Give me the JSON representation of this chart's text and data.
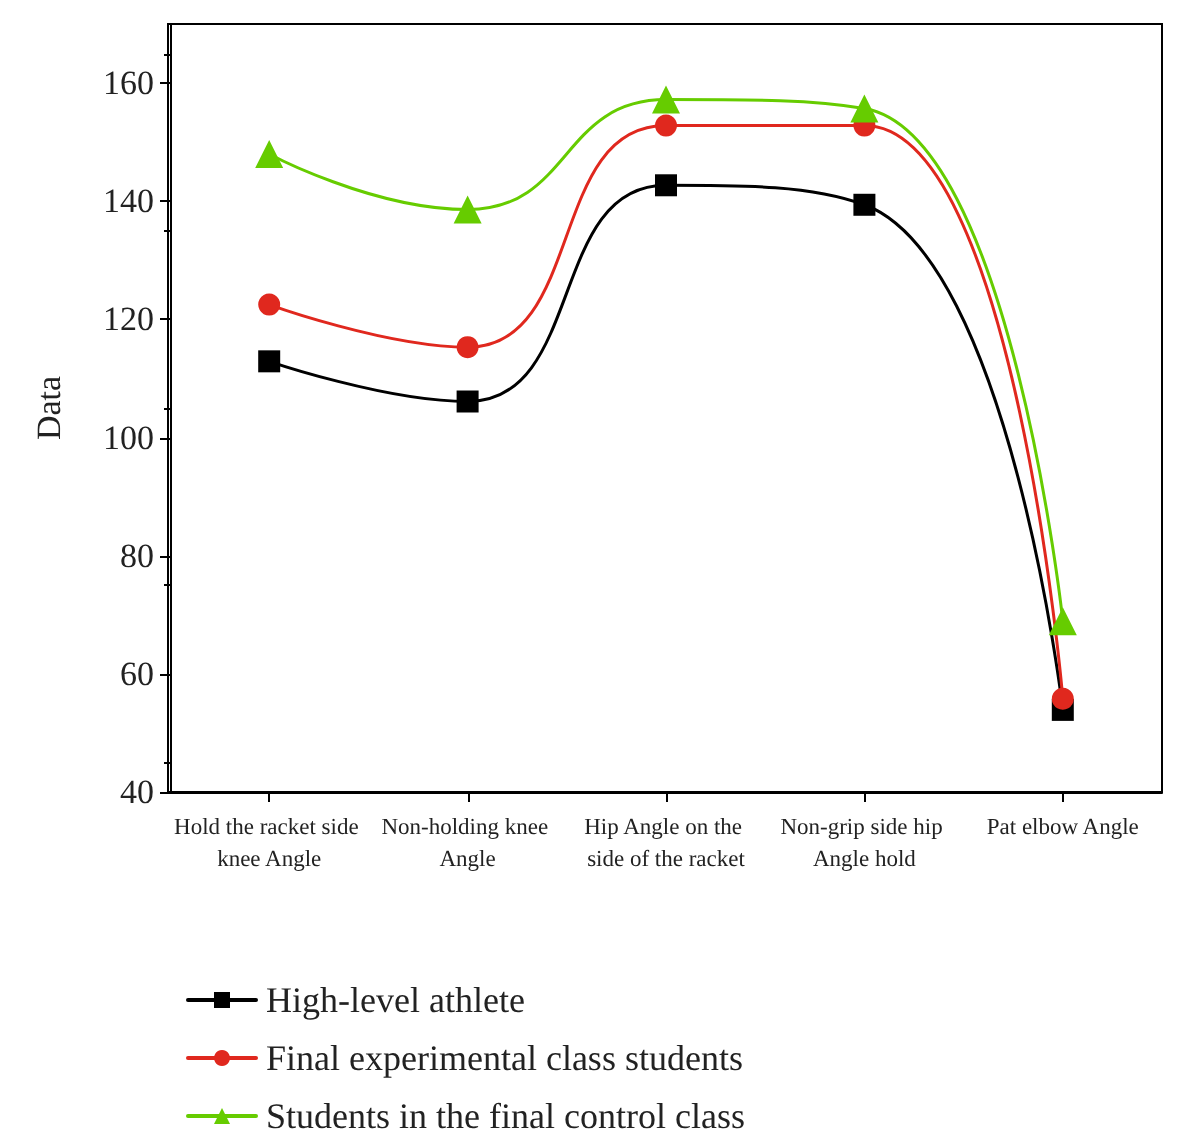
{
  "chart_data": {
    "type": "line",
    "ylabel": "Data",
    "categories": [
      "Hold the racket side knee Angle",
      "Non-holding knee Angle",
      "Hip Angle on the side of the racket",
      "Non-grip side hip Angle hold",
      "Pat elbow Angle"
    ],
    "series": [
      {
        "name": "High-level athlete",
        "color": "#000000",
        "marker": "square",
        "values": [
          112.9,
          106.1,
          142.7,
          139.4,
          53.9
        ]
      },
      {
        "name": "Final experimental class students",
        "color": "#e0281e",
        "marker": "circle",
        "values": [
          122.5,
          115.3,
          152.8,
          152.8,
          55.8
        ]
      },
      {
        "name": "Students in the final control class",
        "color": "#66cc00",
        "marker": "triangle",
        "values": [
          148,
          138.6,
          157.2,
          155.7,
          68.9
        ]
      }
    ],
    "ylim": [
      40,
      170
    ],
    "yticks": [
      40,
      60,
      80,
      100,
      120,
      140,
      160
    ],
    "grid": false,
    "legend": "bottom",
    "line_style": "solid"
  }
}
